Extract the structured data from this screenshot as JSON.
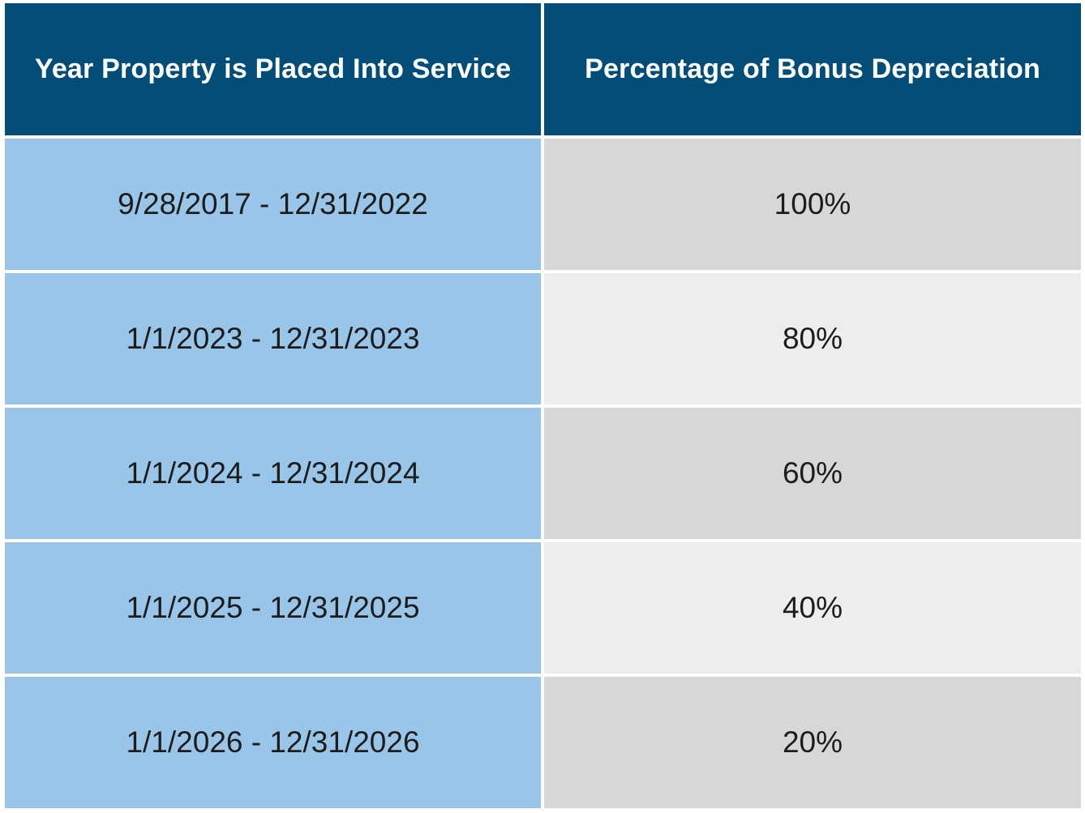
{
  "table": {
    "headers": [
      "Year Property is Placed Into Service",
      "Percentage of Bonus Depreciation"
    ],
    "rows": [
      {
        "period": "9/28/2017 - 12/31/2022",
        "percentage": "100%"
      },
      {
        "period": "1/1/2023 - 12/31/2023",
        "percentage": "80%"
      },
      {
        "period": "1/1/2024 - 12/31/2024",
        "percentage": "60%"
      },
      {
        "period": "1/1/2025 - 12/31/2025",
        "percentage": "40%"
      },
      {
        "period": "1/1/2026 - 12/31/2026",
        "percentage": "20%"
      }
    ]
  },
  "colors": {
    "header_bg": "#024e79",
    "header_text": "#ffffff",
    "period_bg": "#99c6e8",
    "percent_bg_dark": "#d7d7d7",
    "percent_bg_light": "#ededed"
  }
}
